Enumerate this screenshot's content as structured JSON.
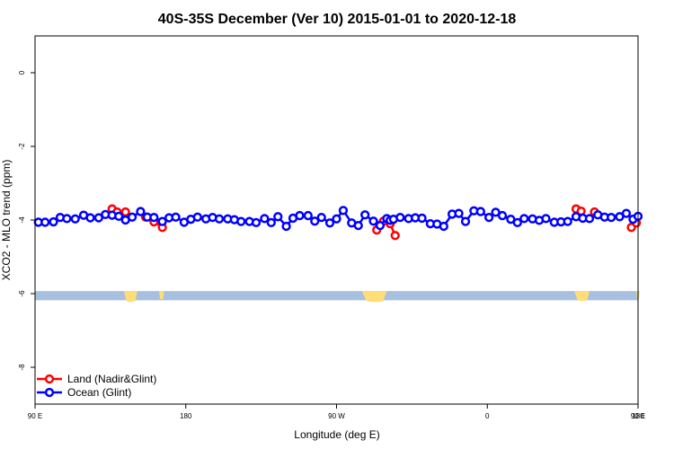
{
  "chart_data": {
    "type": "line",
    "title": "40S-35S December (Ver 10)   2015-01-01 to 2020-12-18",
    "xlabel": "Longitude (deg E)",
    "ylabel": "XCO2 - MLO trend (ppm)",
    "xlim": [
      90,
      450
    ],
    "ylim": [
      -9,
      1
    ],
    "x_ticks": [
      {
        "value": 90,
        "label": "90 E"
      },
      {
        "value": 180,
        "label": "180"
      },
      {
        "value": 270,
        "label": "90 W"
      },
      {
        "value": 360,
        "label": "0"
      },
      {
        "value": 450,
        "label": "90 E"
      },
      {
        "value": 540,
        "label": "180"
      }
    ],
    "y_ticks": [
      {
        "value": 0,
        "label": "0"
      },
      {
        "value": -2,
        "label": "-2"
      },
      {
        "value": -4,
        "label": "-4"
      },
      {
        "value": -6,
        "label": "-6"
      },
      {
        "value": -8,
        "label": "-8"
      }
    ],
    "grid": false,
    "legend_position": "bottom-left",
    "series": [
      {
        "name": "Land (Nadir&Glint)",
        "color": "#ff0000",
        "segments": [
          [
            [
              136,
              -3.7
            ],
            [
              139,
              -3.78
            ],
            [
              144,
              -3.78
            ]
          ],
          [
            [
              156,
              -3.92
            ],
            [
              161,
              -4.05
            ],
            [
              166,
              -4.2
            ]
          ],
          [
            [
              294,
              -4.27
            ],
            [
              298,
              -4.03
            ],
            [
              302,
              -4.1
            ],
            [
              305,
              -4.42
            ]
          ],
          [
            [
              413,
              -3.7
            ],
            [
              416,
              -3.76
            ]
          ],
          [
            [
              424,
              -3.78
            ]
          ],
          [
            [
              446,
              -4.2
            ],
            [
              449,
              -4.08
            ]
          ]
        ]
      },
      {
        "name": "Ocean (Glint)",
        "color": "#0000ff",
        "x": [
          92,
          96,
          101,
          105,
          109,
          114,
          119,
          123,
          128,
          132,
          136,
          140,
          144,
          148,
          153,
          157,
          161,
          166,
          170,
          174,
          179,
          183,
          187,
          192,
          196,
          200,
          205,
          209,
          213,
          218,
          222,
          227,
          231,
          235,
          240,
          244,
          248,
          253,
          257,
          261,
          266,
          270,
          274,
          279,
          283,
          287,
          292,
          296,
          300,
          302,
          304,
          308,
          313,
          317,
          321,
          326,
          330,
          334,
          339,
          343,
          347,
          352,
          356,
          361,
          365,
          369,
          374,
          378,
          382,
          387,
          391,
          395,
          400,
          404,
          408,
          413,
          417,
          421,
          426,
          430,
          434,
          439,
          443,
          447,
          450
        ],
        "values": [
          -4.06,
          -4.06,
          -4.05,
          -3.93,
          -3.96,
          -3.97,
          -3.87,
          -3.94,
          -3.94,
          -3.85,
          -3.87,
          -3.9,
          -4,
          -3.92,
          -3.77,
          -3.92,
          -3.93,
          -4.04,
          -3.94,
          -3.92,
          -4.06,
          -3.98,
          -3.92,
          -3.97,
          -3.93,
          -3.97,
          -3.97,
          -3.99,
          -4.04,
          -4.04,
          -4.07,
          -3.96,
          -4.07,
          -3.91,
          -4.17,
          -3.95,
          -3.88,
          -3.88,
          -4.03,
          -3.93,
          -4.08,
          -3.97,
          -3.74,
          -4.08,
          -4.15,
          -3.86,
          -4.03,
          -4.15,
          -3.96,
          -4.01,
          -3.98,
          -3.93,
          -3.96,
          -3.94,
          -3.95,
          -4.1,
          -4.11,
          -4.17,
          -3.84,
          -3.82,
          -4.04,
          -3.75,
          -3.77,
          -3.93,
          -3.79,
          -3.88,
          -3.98,
          -4.07,
          -3.96,
          -3.97,
          -4.01,
          -3.96,
          -4.06,
          -4.05,
          -4.04,
          -3.91,
          -3.95,
          -3.96,
          -3.86,
          -3.92,
          -3.93,
          -3.91,
          -3.82,
          -3.98,
          -3.9
        ]
      }
    ],
    "land_mask_color": "#ffdd77",
    "ocean_mask_color": "#a8c0e0",
    "mask_band_y": [
      -6.18,
      -5.93
    ]
  }
}
